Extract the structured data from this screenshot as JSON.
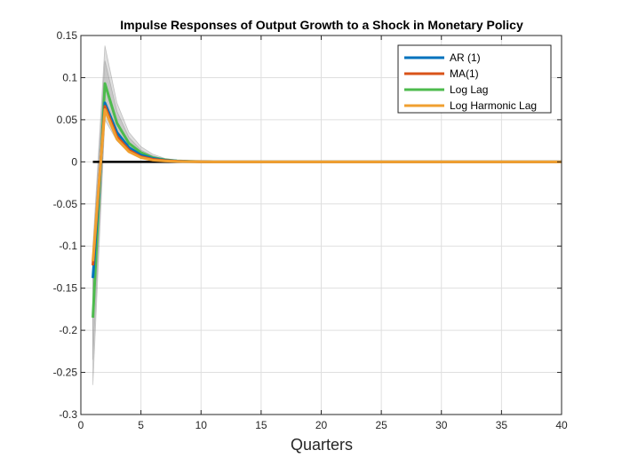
{
  "chart_data": {
    "type": "line",
    "title": "Impulse Responses of Output Growth to a Shock in Monetary Policy",
    "xlabel": "Quarters",
    "ylabel": "",
    "xlim": [
      0,
      40
    ],
    "ylim": [
      -0.3,
      0.15
    ],
    "xticks": [
      0,
      5,
      10,
      15,
      20,
      25,
      30,
      35,
      40
    ],
    "yticks": [
      0.15,
      0.1,
      0.05,
      0,
      -0.05,
      -0.1,
      -0.15,
      -0.2,
      -0.25,
      -0.3
    ],
    "xtick_labels": [
      "0",
      "5",
      "10",
      "15",
      "20",
      "25",
      "30",
      "35",
      "40"
    ],
    "ytick_labels": [
      "0.15",
      "0.1",
      "0.05",
      "0",
      "-0.05",
      "-0.1",
      "-0.15",
      "-0.2",
      "-0.25",
      "-0.3"
    ],
    "grid": true,
    "legend_position": "top-right",
    "zero_line": {
      "y": 0,
      "x_start": 1,
      "x_end": 40,
      "color": "#000000"
    },
    "x": [
      1,
      2,
      3,
      4,
      5,
      6,
      7,
      8,
      9,
      10,
      11,
      12,
      13,
      14,
      15,
      16,
      17,
      18,
      19,
      20,
      21,
      22,
      23,
      24,
      25,
      26,
      27,
      28,
      29,
      30,
      31,
      32,
      33,
      34,
      35,
      36,
      37,
      38,
      39,
      40
    ],
    "confidence_bands": [
      {
        "lower": [
          -0.265,
          0.05,
          0.025,
          0.011,
          0.005,
          0.002,
          0.001,
          0.0005,
          0.0002,
          0,
          0,
          0,
          0,
          0,
          0,
          0,
          0,
          0,
          0,
          0,
          0,
          0,
          0,
          0,
          0,
          0,
          0,
          0,
          0,
          0,
          0,
          0,
          0,
          0,
          0,
          0,
          0,
          0,
          0,
          0
        ],
        "upper": [
          -0.1,
          0.138,
          0.07,
          0.035,
          0.018,
          0.009,
          0.004,
          0.002,
          0.001,
          0.0004,
          0,
          0,
          0,
          0,
          0,
          0,
          0,
          0,
          0,
          0,
          0,
          0,
          0,
          0,
          0,
          0,
          0,
          0,
          0,
          0,
          0,
          0,
          0,
          0,
          0,
          0,
          0,
          0,
          0,
          0
        ]
      },
      {
        "lower": [
          -0.235,
          0.058,
          0.03,
          0.014,
          0.007,
          0.003,
          0.0015,
          0.0007,
          0.0003,
          0,
          0,
          0,
          0,
          0,
          0,
          0,
          0,
          0,
          0,
          0,
          0,
          0,
          0,
          0,
          0,
          0,
          0,
          0,
          0,
          0,
          0,
          0,
          0,
          0,
          0,
          0,
          0,
          0,
          0,
          0
        ],
        "upper": [
          -0.11,
          0.12,
          0.06,
          0.029,
          0.014,
          0.007,
          0.003,
          0.0015,
          0.0007,
          0.0003,
          0,
          0,
          0,
          0,
          0,
          0,
          0,
          0,
          0,
          0,
          0,
          0,
          0,
          0,
          0,
          0,
          0,
          0,
          0,
          0,
          0,
          0,
          0,
          0,
          0,
          0,
          0,
          0,
          0,
          0
        ]
      }
    ],
    "band_color": "#8c8c8c",
    "series": [
      {
        "name": "AR (1)",
        "color": "#0072BD",
        "values": [
          -0.138,
          0.07,
          0.035,
          0.017,
          0.008,
          0.004,
          0.002,
          0.001,
          0.0005,
          0.0002,
          0,
          0,
          0,
          0,
          0,
          0,
          0,
          0,
          0,
          0,
          0,
          0,
          0,
          0,
          0,
          0,
          0,
          0,
          0,
          0,
          0,
          0,
          0,
          0,
          0,
          0,
          0,
          0,
          0,
          0
        ]
      },
      {
        "name": "MA(1)",
        "color": "#D95319",
        "values": [
          -0.123,
          0.066,
          0.03,
          0.014,
          0.006,
          0.003,
          0.0015,
          0.0007,
          0.0003,
          0.0001,
          0,
          0,
          0,
          0,
          0,
          0,
          0,
          0,
          0,
          0,
          0,
          0,
          0,
          0,
          0,
          0,
          0,
          0,
          0,
          0,
          0,
          0,
          0,
          0,
          0,
          0,
          0,
          0,
          0,
          0
        ]
      },
      {
        "name": "Log Lag",
        "color": "#4DBB4D",
        "values": [
          -0.185,
          0.093,
          0.046,
          0.022,
          0.011,
          0.005,
          0.0025,
          0.0012,
          0.0006,
          0.0003,
          0,
          0,
          0,
          0,
          0,
          0,
          0,
          0,
          0,
          0,
          0,
          0,
          0,
          0,
          0,
          0,
          0,
          0,
          0,
          0,
          0,
          0,
          0,
          0,
          0,
          0,
          0,
          0,
          0,
          0
        ]
      },
      {
        "name": "Log Harmonic Lag",
        "color": "#F0A030",
        "values": [
          -0.118,
          0.062,
          0.027,
          0.012,
          0.005,
          0.002,
          0.001,
          0.0005,
          0.0002,
          0.0001,
          0,
          0,
          0,
          0,
          0,
          0,
          0,
          0,
          0,
          0,
          0,
          0,
          0,
          0,
          0,
          0,
          0,
          0,
          0,
          0,
          0,
          0,
          0,
          0,
          0,
          0,
          0,
          0,
          0,
          0
        ]
      }
    ]
  }
}
